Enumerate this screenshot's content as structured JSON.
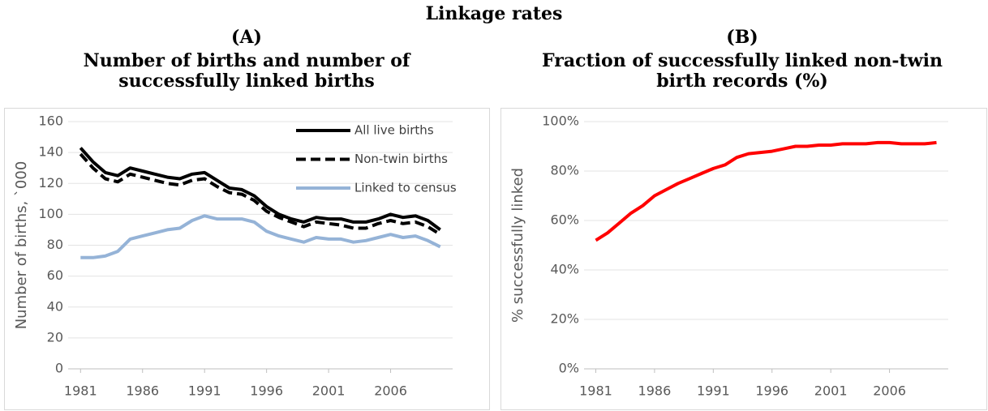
{
  "figure_title": "Linkage rates",
  "chart_data": [
    {
      "type": "line",
      "label": "(A)",
      "title": [
        "Number of births and number of",
        "successfully linked births"
      ],
      "ylabel": "Number of births, `000",
      "x": [
        1981,
        1982,
        1983,
        1984,
        1985,
        1986,
        1987,
        1988,
        1989,
        1990,
        1991,
        1992,
        1993,
        1994,
        1995,
        1996,
        1997,
        1998,
        1999,
        2000,
        2001,
        2002,
        2003,
        2004,
        2005,
        2006,
        2007,
        2008,
        2009,
        2010
      ],
      "series": [
        {
          "name": "All live births",
          "color": "#000000",
          "style": "solid",
          "values": [
            143,
            134,
            127,
            125,
            130,
            128,
            126,
            124,
            123,
            126,
            127,
            122,
            117,
            116,
            112,
            105,
            100,
            97,
            95,
            98,
            97,
            97,
            95,
            95,
            97,
            100,
            98,
            99,
            96,
            90
          ]
        },
        {
          "name": "Non-twin births",
          "color": "#000000",
          "style": "dashed",
          "values": [
            139,
            130,
            123,
            121,
            126,
            124,
            122,
            120,
            119,
            122,
            123,
            118,
            114,
            113,
            109,
            102,
            98,
            95,
            92,
            95,
            94,
            93,
            91,
            91,
            94,
            96,
            94,
            95,
            92,
            87
          ]
        },
        {
          "name": "Linked to census",
          "color": "#95b3d7",
          "style": "solid",
          "values": [
            72,
            72,
            73,
            76,
            84,
            86,
            88,
            90,
            91,
            96,
            99,
            97,
            97,
            97,
            95,
            89,
            86,
            84,
            82,
            85,
            84,
            84,
            82,
            83,
            85,
            87,
            85,
            86,
            83,
            79
          ]
        }
      ],
      "xlim": [
        1980,
        2011
      ],
      "xticks": [
        1981,
        1986,
        1991,
        1996,
        2001,
        2006
      ],
      "ylim": [
        0,
        160
      ],
      "yticks": [
        0,
        20,
        40,
        60,
        80,
        100,
        120,
        140,
        160
      ],
      "grid": true,
      "legend": "upper right"
    },
    {
      "type": "line",
      "label": "(B)",
      "title": [
        "Fraction of successfully linked non-twin",
        "birth records (%)"
      ],
      "ylabel": "% successfully linked",
      "x": [
        1981,
        1982,
        1983,
        1984,
        1985,
        1986,
        1987,
        1988,
        1989,
        1990,
        1991,
        1992,
        1993,
        1994,
        1995,
        1996,
        1997,
        1998,
        1999,
        2000,
        2001,
        2002,
        2003,
        2004,
        2005,
        2006,
        2007,
        2008,
        2009,
        2010
      ],
      "series": [
        {
          "color": "#ff0000",
          "style": "solid",
          "values": [
            52,
            55,
            59,
            63,
            66,
            70,
            72.5,
            75,
            77,
            79,
            81,
            82.5,
            85.5,
            87,
            87.5,
            88,
            89,
            90,
            90,
            90.5,
            90.5,
            91,
            91,
            91,
            91.5,
            91.5,
            91,
            91,
            91,
            91.5
          ]
        }
      ],
      "xlim": [
        1980,
        2011
      ],
      "xticks": [
        1981,
        1986,
        1991,
        1996,
        2001,
        2006
      ],
      "ylim": [
        0,
        100
      ],
      "yticks": [
        {
          "value": 0,
          "label": "0%"
        },
        {
          "value": 20,
          "label": "20%"
        },
        {
          "value": 40,
          "label": "40%"
        },
        {
          "value": 60,
          "label": "60%"
        },
        {
          "value": 80,
          "label": "80%"
        },
        {
          "value": 100,
          "label": "100%"
        }
      ],
      "grid": true
    }
  ]
}
